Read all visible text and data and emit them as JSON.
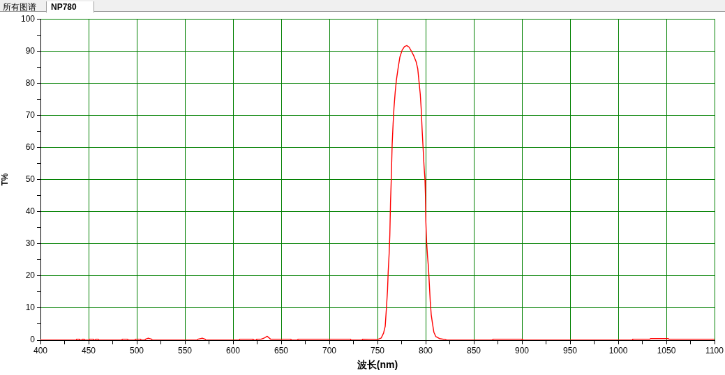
{
  "chart_data": {
    "type": "line",
    "title": "NP780",
    "annotations": [
      "所有图谱"
    ],
    "xlabel": "波长(nm)",
    "ylabel": "T%",
    "series": [
      {
        "color": "#ff0000",
        "x": [
          400,
          437,
          437.5,
          440,
          440.5,
          443,
          443.5,
          445,
          445.5,
          450,
          450.5,
          455,
          455.5,
          457,
          457.5,
          460,
          460.5,
          484.5,
          485,
          490.5,
          491,
          498,
          498.5,
          504,
          504.5,
          508.5,
          509,
          512,
          515.5,
          516,
          563,
          563.5,
          568,
          571,
          571.5,
          606.5,
          607,
          620.5,
          621,
          624,
          624.5,
          629,
          632,
          635.5,
          639,
          660,
          660.5,
          667,
          667.5,
          722,
          722.5,
          734,
          734.5,
          750,
          753.9,
          756.3,
          758,
          759.2,
          760.4,
          761.1,
          762.1,
          762.8,
          763.5,
          764.3,
          765.2,
          766.2,
          767.1,
          768.4,
          769.6,
          771.3,
          773.2,
          775.6,
          778,
          780.4,
          782.9,
          785.3,
          787.7,
          790.1,
          791.8,
          793.2,
          794.4,
          795.4,
          796.4,
          797.3,
          798.3,
          799.3,
          799.8,
          800.2,
          801,
          801.9,
          802.9,
          803.8,
          804.8,
          805.8,
          807,
          808.5,
          810.6,
          814.3,
          820.3,
          822,
          869.5,
          870,
          900,
          900.5,
          1014.5,
          1015,
          1033,
          1033.5,
          1052,
          1052.5,
          1100
        ],
        "values": [
          0,
          0,
          0.3,
          0.3,
          0,
          0,
          0.3,
          0.3,
          0,
          0,
          0.3,
          0.3,
          0,
          0,
          0.3,
          0.3,
          0,
          0,
          0.3,
          0.3,
          0,
          0,
          0.3,
          0.3,
          0,
          0,
          0.3,
          0.6,
          0.3,
          0,
          0,
          0.3,
          0.6,
          0.3,
          0,
          0,
          0.3,
          0.3,
          0,
          0,
          0.3,
          0.3,
          0.6,
          1.2,
          0.3,
          0.3,
          0,
          0,
          0.3,
          0.3,
          0,
          0,
          0.3,
          0.2,
          0.7,
          2.2,
          4.3,
          9.7,
          15.5,
          21.2,
          27,
          32.7,
          42.8,
          50,
          60.8,
          67.3,
          72.3,
          77.3,
          80.9,
          84.5,
          88.1,
          90.3,
          91.4,
          91.7,
          91.2,
          89.9,
          88.5,
          86.7,
          84.5,
          80.2,
          76.6,
          71.9,
          65.1,
          60.1,
          54.3,
          50,
          45,
          37,
          30.6,
          26.3,
          22.7,
          17.6,
          11.9,
          7.9,
          5.4,
          2.5,
          1.1,
          0.5,
          0.2,
          0,
          0,
          0.3,
          0.3,
          0,
          0,
          0.3,
          0.3,
          0.5,
          0.5,
          0.3,
          0.3
        ]
      }
    ],
    "xlim": [
      400,
      1100
    ],
    "ylim": [
      0,
      100
    ],
    "xticks": [
      400,
      {
        "value": 425,
        "label": null
      },
      450,
      {
        "value": 475,
        "label": null
      },
      500,
      {
        "value": 525,
        "label": null
      },
      550,
      {
        "value": 575,
        "label": null
      },
      600,
      {
        "value": 625,
        "label": null
      },
      650,
      {
        "value": 675,
        "label": null
      },
      700,
      {
        "value": 725,
        "label": null
      },
      750,
      {
        "value": 775,
        "label": null
      },
      800,
      {
        "value": 825,
        "label": null
      },
      850,
      {
        "value": 875,
        "label": null
      },
      900,
      {
        "value": 925,
        "label": null
      },
      950,
      {
        "value": 975,
        "label": null
      },
      1000,
      {
        "value": 1025,
        "label": null
      },
      1050,
      {
        "value": 1075,
        "label": null
      },
      1100
    ],
    "yticks": [
      0,
      {
        "value": 5,
        "label": null
      },
      10,
      {
        "value": 15,
        "label": null
      },
      20,
      {
        "value": 25,
        "label": null
      },
      30,
      {
        "value": 35,
        "label": null
      },
      40,
      {
        "value": 45,
        "label": null
      },
      50,
      {
        "value": 55,
        "label": null
      },
      60,
      {
        "value": 65,
        "label": null
      },
      70,
      {
        "value": 75,
        "label": null
      },
      80,
      {
        "value": 85,
        "label": null
      },
      90,
      {
        "value": 95,
        "label": null
      },
      100
    ],
    "grid": true,
    "marker": "none",
    "line_style": "solid"
  }
}
